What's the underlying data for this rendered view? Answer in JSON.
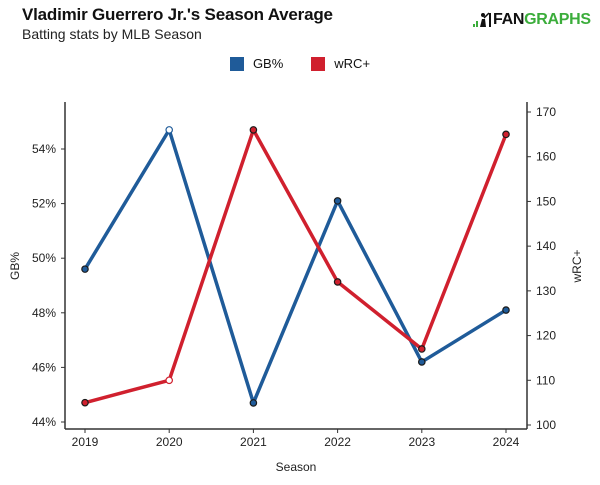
{
  "header": {
    "title": "Vladimir Guerrero Jr.'s Season Average",
    "subtitle": "Batting stats by MLB Season",
    "logo_left": "FAN",
    "logo_right": "GRAPHS"
  },
  "legend": [
    {
      "label": "GB%",
      "color": "#1f5b99"
    },
    {
      "label": "wRC+",
      "color": "#d0202e"
    }
  ],
  "chart_data": {
    "type": "line",
    "title": "Vladimir Guerrero Jr.'s Season Average",
    "subtitle": "Batting stats by MLB Season",
    "xlabel": "Season",
    "ylabel": "GB%",
    "y2label": "wRC+",
    "categories": [
      "2019",
      "2020",
      "2021",
      "2022",
      "2023",
      "2024"
    ],
    "series": [
      {
        "name": "GB%",
        "axis": "left",
        "color": "#1f5b99",
        "values": [
          49.6,
          54.7,
          44.7,
          52.1,
          46.2,
          48.1
        ]
      },
      {
        "name": "wRC+",
        "axis": "right",
        "color": "#d0202e",
        "values": [
          105,
          110,
          166,
          132,
          117,
          165
        ]
      }
    ],
    "ylim": [
      44,
      55.5
    ],
    "y2lim": [
      100,
      172
    ],
    "yticks": [
      "44%",
      "46%",
      "48%",
      "50%",
      "52%",
      "54%"
    ],
    "y2ticks": [
      "100",
      "110",
      "120",
      "130",
      "140",
      "150",
      "160",
      "170"
    ],
    "grid": false,
    "legend_position": "top"
  }
}
